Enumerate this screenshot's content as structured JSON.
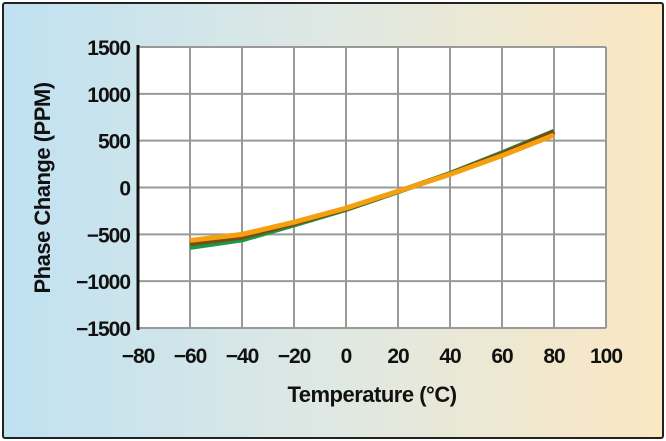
{
  "chart_data": {
    "type": "line",
    "title": "",
    "xlabel": "Temperature (°C)",
    "ylabel": "Phase Change (PPM)",
    "xlim": [
      -80,
      100
    ],
    "ylim": [
      -1500,
      1500
    ],
    "xticks": [
      -80,
      -60,
      -40,
      -20,
      0,
      20,
      40,
      60,
      80,
      100
    ],
    "yticks": [
      1500,
      1000,
      500,
      0,
      -500,
      -1000,
      -1500
    ],
    "xtick_labels": [
      "−80",
      "−60",
      "−40",
      "−20",
      "0",
      "20",
      "40",
      "60",
      "80",
      "100"
    ],
    "ytick_labels": [
      "1500",
      "1000",
      "500",
      "0",
      "−500",
      "−1000",
      "−1500"
    ],
    "grid": true,
    "series": [
      {
        "name": "green",
        "color": "#1a9a48",
        "x": [
          -60,
          -40,
          -20,
          0,
          20,
          40,
          60,
          80
        ],
        "y": [
          -640,
          -560,
          -400,
          -235,
          -45,
          150,
          370,
          600
        ]
      },
      {
        "name": "brown",
        "color": "#7a4a14",
        "x": [
          -60,
          -40,
          -20,
          0,
          20,
          40,
          60,
          80
        ],
        "y": [
          -600,
          -530,
          -385,
          -228,
          -42,
          145,
          360,
          595
        ]
      },
      {
        "name": "orange",
        "color": "#f5a00f",
        "x": [
          -60,
          -40,
          -20,
          0,
          20,
          40,
          60,
          80
        ],
        "y": [
          -565,
          -500,
          -370,
          -220,
          -40,
          140,
          340,
          560
        ]
      }
    ]
  }
}
